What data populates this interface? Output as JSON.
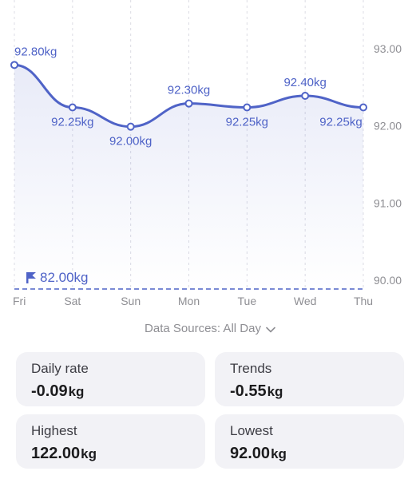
{
  "chart_data": {
    "type": "line",
    "x": [
      "Fri",
      "Sat",
      "Sun",
      "Mon",
      "Tue",
      "Wed",
      "Thu"
    ],
    "y": [
      92.8,
      92.25,
      92.0,
      92.3,
      92.25,
      92.4,
      92.25
    ],
    "data_labels": [
      "92.80kg",
      "92.25kg",
      "92.00kg",
      "92.30kg",
      "92.25kg",
      "92.40kg",
      "92.25kg"
    ],
    "y_ticks": [
      "93.00",
      "92.00",
      "91.00",
      "90.00"
    ],
    "y_tick_values": [
      93,
      92,
      91,
      90
    ],
    "ylim": [
      90,
      93
    ],
    "goal": {
      "value": 82.0,
      "label": "82.00kg"
    },
    "line_color": "#4f63c7",
    "grid": true,
    "y_axis_side": "right"
  },
  "data_sources": {
    "label": "Data Sources: All Day"
  },
  "stats": [
    {
      "label": "Daily rate",
      "value": "-0.09",
      "unit": "kg"
    },
    {
      "label": "Trends",
      "value": "-0.55",
      "unit": "kg"
    },
    {
      "label": "Highest",
      "value": "122.00",
      "unit": "kg"
    },
    {
      "label": "Lowest",
      "value": "92.00",
      "unit": "kg"
    }
  ]
}
